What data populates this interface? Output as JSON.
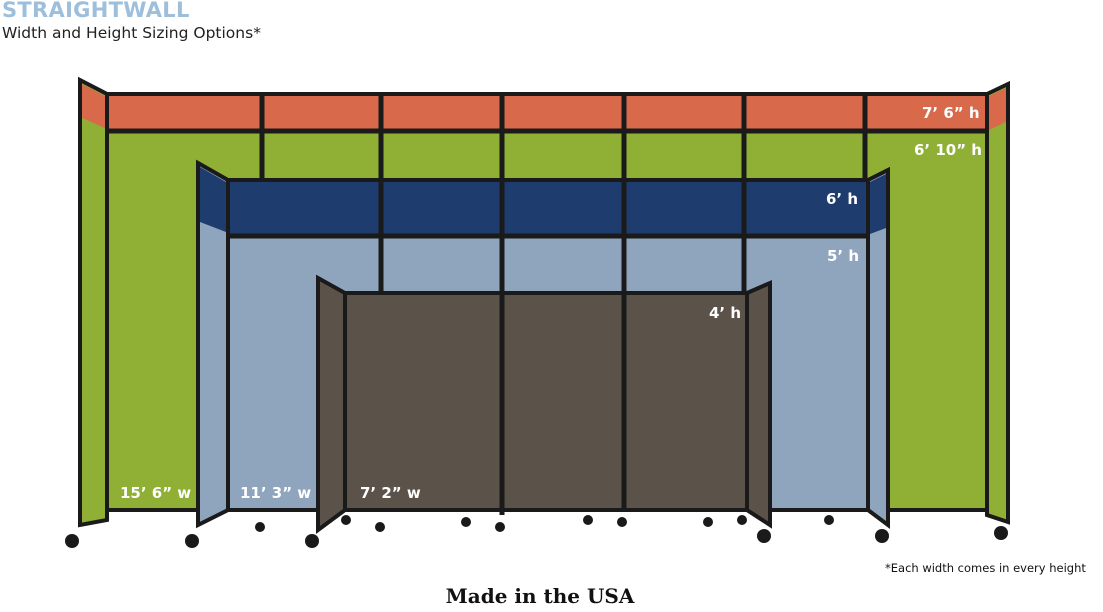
{
  "header": {
    "brand": "STRAIGHTWALL",
    "subtitle": "Width and Height Sizing Options*"
  },
  "heights": [
    "7’ 6” h",
    "6’ 10” h",
    "6’ h",
    "5’ h",
    "4’ h"
  ],
  "widths": [
    "15’ 6” w",
    "11’ 3” w",
    "7’ 2” w"
  ],
  "footnote": "*Each width comes in every height",
  "tagline": "Made in the USA",
  "colors": {
    "orange": "#d8694a",
    "green": "#8fb035",
    "navy": "#1f3c6e",
    "light_blue": "#8fa5bd",
    "brown": "#5b534a",
    "frame": "#1a1a1a",
    "brand": "#9dbfdc"
  }
}
